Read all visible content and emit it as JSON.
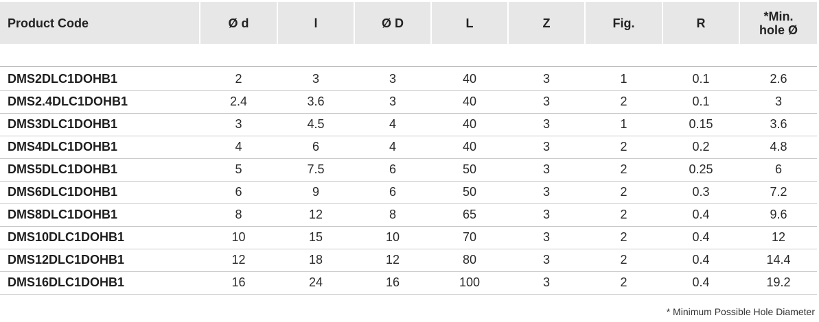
{
  "table": {
    "headers": [
      "Product Code",
      "Ø d",
      "l",
      "Ø D",
      "L",
      "Z",
      "Fig.",
      "R",
      "*Min.\nhole Ø"
    ],
    "rows": [
      [
        "DMS2DLC1DOHB1",
        "2",
        "3",
        "3",
        "40",
        "3",
        "1",
        "0.1",
        "2.6"
      ],
      [
        "DMS2.4DLC1DOHB1",
        "2.4",
        "3.6",
        "3",
        "40",
        "3",
        "2",
        "0.1",
        "3"
      ],
      [
        "DMS3DLC1DOHB1",
        "3",
        "4.5",
        "4",
        "40",
        "3",
        "1",
        "0.15",
        "3.6"
      ],
      [
        "DMS4DLC1DOHB1",
        "4",
        "6",
        "4",
        "40",
        "3",
        "2",
        "0.2",
        "4.8"
      ],
      [
        "DMS5DLC1DOHB1",
        "5",
        "7.5",
        "6",
        "50",
        "3",
        "2",
        "0.25",
        "6"
      ],
      [
        "DMS6DLC1DOHB1",
        "6",
        "9",
        "6",
        "50",
        "3",
        "2",
        "0.3",
        "7.2"
      ],
      [
        "DMS8DLC1DOHB1",
        "8",
        "12",
        "8",
        "65",
        "3",
        "2",
        "0.4",
        "9.6"
      ],
      [
        "DMS10DLC1DOHB1",
        "10",
        "15",
        "10",
        "70",
        "3",
        "2",
        "0.4",
        "12"
      ],
      [
        "DMS12DLC1DOHB1",
        "12",
        "18",
        "12",
        "80",
        "3",
        "2",
        "0.4",
        "14.4"
      ],
      [
        "DMS16DLC1DOHB1",
        "16",
        "24",
        "16",
        "100",
        "3",
        "2",
        "0.4",
        "19.2"
      ]
    ]
  },
  "footnote": "* Minimum Possible Hole Diameter",
  "colors": {
    "header_bg": "#e7e7e7",
    "text": "#222222",
    "rule": "#9a9a9a"
  }
}
